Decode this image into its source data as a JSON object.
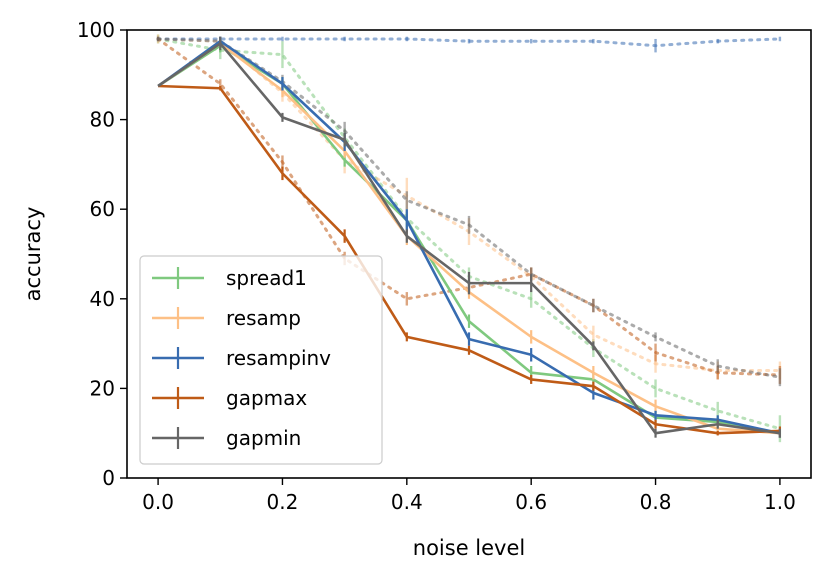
{
  "chart_data": {
    "type": "line",
    "title": "",
    "xlabel": "noise level",
    "ylabel": "accuracy",
    "xlim": [
      -0.05,
      1.05
    ],
    "ylim": [
      0,
      100
    ],
    "x": [
      0.0,
      0.1,
      0.2,
      0.3,
      0.4,
      0.5,
      0.6,
      0.7,
      0.8,
      0.9,
      1.0
    ],
    "xticks": [
      0.0,
      0.2,
      0.4,
      0.6,
      0.8,
      1.0
    ],
    "xtick_labels": [
      "0.0",
      "0.2",
      "0.4",
      "0.6",
      "0.8",
      "1.0"
    ],
    "yticks": [
      0,
      20,
      40,
      60,
      80,
      100
    ],
    "ytick_labels": [
      "0",
      "20",
      "40",
      "60",
      "80",
      "100"
    ],
    "grid": false,
    "legend_position": "lower-left",
    "series": [
      {
        "name": "spread1",
        "color": "#7fc97f",
        "values": [
          87.5,
          96.5,
          88.0,
          71.0,
          57.5,
          35.0,
          23.5,
          22.0,
          13.5,
          12.5,
          10.0
        ],
        "errors": [
          0,
          1.5,
          1.5,
          1.5,
          2,
          1.5,
          1.5,
          1.5,
          1.5,
          1,
          1
        ]
      },
      {
        "name": "resamp",
        "color": "#fdc086",
        "values": [
          87.5,
          97.0,
          86.5,
          73.0,
          54.0,
          41.5,
          31.5,
          23.5,
          16.0,
          11.0,
          10.0
        ],
        "errors": [
          0,
          1,
          1.5,
          1.5,
          2,
          1.5,
          1.5,
          1.5,
          1.5,
          1,
          1
        ]
      },
      {
        "name": "resampinv",
        "color": "#386cb0",
        "values": [
          87.5,
          97.5,
          88.0,
          75.0,
          57.5,
          31.0,
          27.5,
          19.0,
          14.0,
          13.0,
          10.0
        ],
        "errors": [
          0,
          1,
          1.5,
          2,
          2.5,
          1.5,
          1.5,
          1.5,
          1,
          1,
          1
        ]
      },
      {
        "name": "gapmax",
        "color": "#bf5b17",
        "values": [
          87.5,
          87.0,
          68.0,
          54.0,
          31.5,
          28.5,
          22.0,
          20.5,
          12.0,
          10.0,
          10.5
        ],
        "errors": [
          0,
          0.5,
          1.5,
          1.5,
          1,
          1,
          1,
          1,
          1,
          0.5,
          1
        ]
      },
      {
        "name": "gapmin",
        "color": "#666666",
        "values": [
          87.5,
          97.0,
          80.5,
          75.5,
          54.0,
          43.5,
          43.5,
          29.5,
          10.0,
          12.0,
          10.0
        ],
        "errors": [
          0,
          1.5,
          1,
          1.5,
          1.5,
          2.5,
          2,
          1,
          1,
          1,
          1
        ]
      }
    ],
    "dotted_series": [
      {
        "color": "#7fc97f",
        "values": [
          98.0,
          95.5,
          94.5,
          76.0,
          58.0,
          45.0,
          40.0,
          29.0,
          20.0,
          15.0,
          11.0
        ],
        "errors": [
          1,
          2,
          3,
          2,
          2,
          2,
          2,
          2,
          2,
          2,
          3
        ]
      },
      {
        "color": "#fdc086",
        "values": [
          98.0,
          97.5,
          86.0,
          71.0,
          63.0,
          55.0,
          45.0,
          32.0,
          25.5,
          24.0,
          24.0
        ],
        "errors": [
          1,
          1,
          2,
          3,
          4,
          3,
          2,
          2,
          2,
          2,
          2
        ]
      },
      {
        "color": "#386cb0",
        "values": [
          98.0,
          98.0,
          98.0,
          98.0,
          98.0,
          97.5,
          97.5,
          97.5,
          96.5,
          97.5,
          98.0
        ],
        "errors": [
          0.5,
          0.5,
          0.5,
          0.5,
          0.5,
          0.5,
          0.5,
          0.5,
          1.5,
          0.5,
          0.5
        ]
      },
      {
        "color": "#bf5b17",
        "values": [
          98.0,
          88.0,
          70.5,
          49.0,
          40.0,
          42.5,
          45.5,
          38.5,
          28.0,
          23.5,
          23.0
        ],
        "errors": [
          0.5,
          1,
          1.5,
          1.5,
          1.5,
          1.5,
          1.5,
          1.5,
          2,
          1.5,
          2
        ]
      },
      {
        "color": "#666666",
        "values": [
          98.0,
          97.5,
          88.5,
          77.5,
          62.0,
          56.5,
          45.5,
          38.5,
          31.5,
          25.0,
          22.5
        ],
        "errors": [
          0.5,
          1,
          1.5,
          2,
          2,
          2,
          1.5,
          1.5,
          1,
          1.5,
          2
        ]
      }
    ]
  }
}
